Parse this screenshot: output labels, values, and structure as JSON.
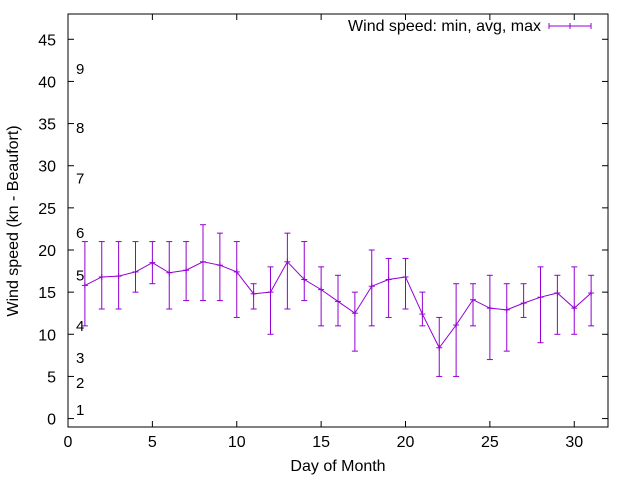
{
  "chart_data": {
    "type": "line",
    "title": "",
    "xlabel": "Day of Month",
    "ylabel": "Wind speed (kn - Beaufort)",
    "xlim": [
      0,
      32
    ],
    "ylim": [
      -1,
      48
    ],
    "xticks": [
      0,
      5,
      10,
      15,
      20,
      25,
      30
    ],
    "yticks": [
      0,
      5,
      10,
      15,
      20,
      25,
      30,
      35,
      40,
      45
    ],
    "grid": false,
    "legend_position": "top-right",
    "color": "#9400d3",
    "beaufort_labels": [
      {
        "label": "1",
        "value": 1
      },
      {
        "label": "2",
        "value": 4.2
      },
      {
        "label": "3",
        "value": 7.2
      },
      {
        "label": "4",
        "value": 11
      },
      {
        "label": "5",
        "value": 17
      },
      {
        "label": "6",
        "value": 22
      },
      {
        "label": "7",
        "value": 28.5
      },
      {
        "label": "8",
        "value": 34.5
      },
      {
        "label": "9",
        "value": 41.5
      }
    ],
    "series": [
      {
        "name": "Wind speed: min, avg, max",
        "x": [
          1,
          2,
          3,
          4,
          5,
          6,
          7,
          8,
          9,
          10,
          11,
          12,
          13,
          14,
          15,
          16,
          17,
          18,
          19,
          20,
          21,
          22,
          23,
          24,
          25,
          26,
          27,
          28,
          29,
          30,
          31
        ],
        "avg": [
          15.8,
          16.8,
          16.9,
          17.4,
          18.5,
          17.3,
          17.6,
          18.6,
          18.2,
          17.4,
          14.8,
          15.0,
          18.6,
          16.5,
          15.3,
          13.9,
          12.5,
          15.7,
          16.5,
          16.8,
          12.4,
          8.4,
          11.1,
          14.1,
          13.1,
          12.9,
          13.7,
          14.4,
          14.9,
          13.1,
          14.9
        ],
        "min": [
          11,
          13,
          13,
          15,
          16,
          13,
          14,
          14,
          14,
          12,
          13,
          10,
          13,
          14,
          11,
          11,
          8,
          11,
          12,
          13,
          11,
          5,
          5,
          11,
          7,
          8,
          12,
          9,
          10,
          10,
          11
        ],
        "max": [
          21,
          21,
          21,
          21,
          21,
          21,
          21,
          23,
          22,
          21,
          16,
          18,
          22,
          21,
          18,
          17,
          15,
          20,
          19,
          19,
          15,
          12,
          16,
          16,
          17,
          16,
          16,
          18,
          17,
          18,
          17
        ]
      }
    ]
  }
}
